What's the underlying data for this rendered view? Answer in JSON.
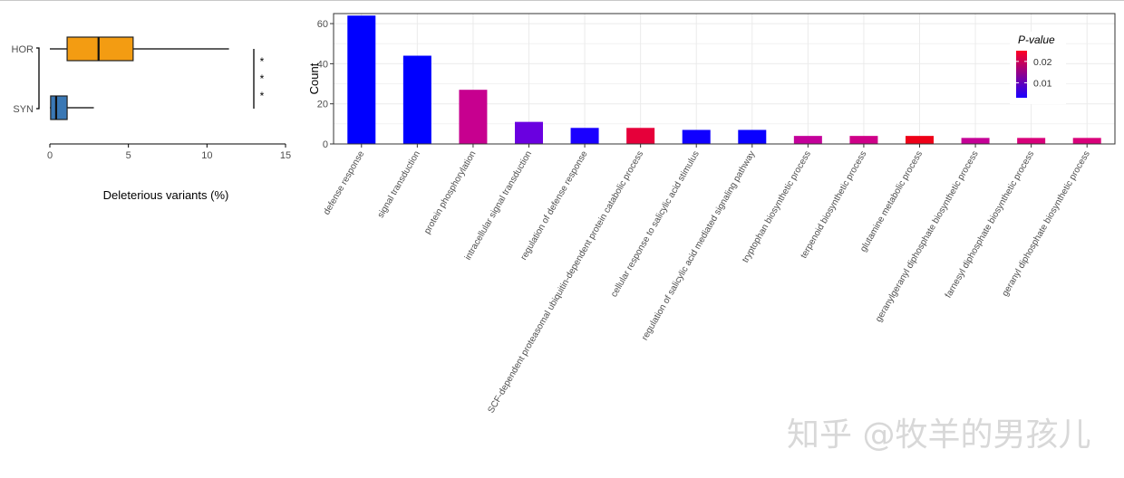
{
  "watermark": "知乎 @牧羊的男孩儿",
  "chart_data": [
    {
      "type": "box",
      "orientation": "horizontal",
      "xlabel": "Deleterious variants (%)",
      "xlim": [
        0,
        15
      ],
      "xticks": [
        0,
        5,
        10,
        15
      ],
      "categories": [
        "HOR",
        "SYN"
      ],
      "boxes": [
        {
          "name": "HOR",
          "whisker_low": 0,
          "q1": 1.1,
          "median": 3.1,
          "q3": 5.3,
          "whisker_high": 11.4,
          "color": "#f39c12"
        },
        {
          "name": "SYN",
          "whisker_low": 0,
          "q1": 0.05,
          "median": 0.4,
          "q3": 1.1,
          "whisker_high": 2.8,
          "color": "#3a78b5"
        }
      ],
      "significance": "***",
      "grid": false
    },
    {
      "type": "bar",
      "ylabel": "Count",
      "ylim": [
        0,
        65
      ],
      "yticks": [
        0,
        20,
        40,
        60
      ],
      "grid": true,
      "legend": {
        "title": "P-value",
        "placement": "top-right",
        "ticks": [
          "0.02",
          "0.01"
        ],
        "tick_values": [
          0.02,
          0.01
        ],
        "range": [
          0.003,
          0.025
        ],
        "low_color": "#1a00ff",
        "high_color": "#ff0022"
      },
      "categories": [
        "defense response",
        "signal transduction",
        "protein phosphorylation",
        "intracellular signal transduction",
        "regulation of defense response",
        "SCF-dependent proteasomal ubiquitin-dependent protein catabolic process",
        "cellular response to salicylic acid stimulus",
        "regulation of salicylic acid mediated signaling pathway",
        "tryptophan biosynthetic process",
        "terpenoid biosynthetic process",
        "glutamine metabolic process",
        "geranylgeranyl diphosphate biosynthetic process",
        "farnesyl diphosphate biosynthetic process",
        "geranyl diphosphate biosynthetic process"
      ],
      "values": [
        64,
        44,
        27,
        11,
        8,
        8,
        7,
        7,
        4,
        4,
        4,
        3,
        3,
        3
      ],
      "colors": [
        "#0000ff",
        "#0000ff",
        "#c7008f",
        "#6a00e0",
        "#1a00ff",
        "#e6003a",
        "#1000ff",
        "#0a00ff",
        "#c4009a",
        "#cf0088",
        "#ee0018",
        "#c50096",
        "#d8007a",
        "#d9007a"
      ]
    }
  ]
}
